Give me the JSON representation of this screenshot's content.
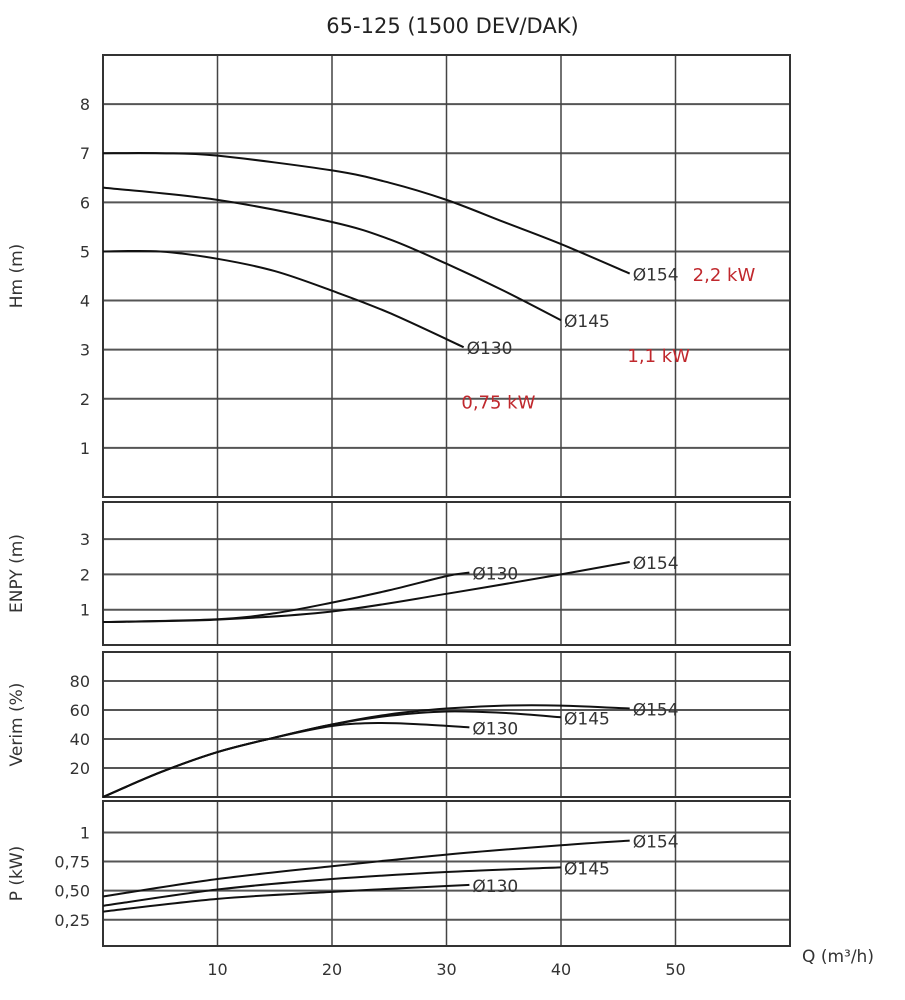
{
  "chart_data": {
    "type": "line",
    "title": "65-125 (1500 DEV/DAK)",
    "xlabel": "Q (m³/h)",
    "xlim": [
      0,
      60
    ],
    "xticks": [
      10,
      20,
      30,
      40,
      50
    ],
    "grid": true,
    "panels": [
      {
        "id": "head",
        "ylabel": "Hm (m)",
        "ylim": [
          0,
          9
        ],
        "yticks": [
          1,
          2,
          3,
          4,
          5,
          6,
          7,
          8
        ],
        "ytick_labels": [
          "1",
          "2",
          "3",
          "4",
          "5",
          "6",
          "7",
          "8"
        ],
        "series": [
          {
            "name": "Ø154",
            "x": [
              0,
              5,
              10,
              20,
              25,
              30,
              35,
              40,
              46
            ],
            "y": [
              7.0,
              7.0,
              6.95,
              6.65,
              6.4,
              6.05,
              5.6,
              5.15,
              4.55
            ]
          },
          {
            "name": "Ø145",
            "x": [
              0,
              10,
              20,
              25,
              30,
              35,
              40
            ],
            "y": [
              6.3,
              6.05,
              5.6,
              5.25,
              4.75,
              4.2,
              3.6
            ]
          },
          {
            "name": "Ø130",
            "x": [
              0,
              5,
              10,
              15,
              20,
              25,
              31.5
            ],
            "y": [
              5.0,
              5.0,
              4.85,
              4.6,
              4.2,
              3.75,
              3.05
            ]
          }
        ],
        "annotations": [
          {
            "text": "2,2 kW",
            "x": 51.5,
            "y": 4.4
          },
          {
            "text": "1,1 kW",
            "x": 45.8,
            "y": 2.75
          },
          {
            "text": "0,75 kW",
            "x": 31.3,
            "y": 1.8
          }
        ]
      },
      {
        "id": "npsh",
        "ylabel": "ENPY (m)",
        "ylim": [
          0,
          4.05
        ],
        "yticks": [
          1,
          2,
          3
        ],
        "ytick_labels": [
          "1",
          "2",
          "3"
        ],
        "series": [
          {
            "name": "Ø130",
            "x": [
              0,
              10,
              15,
              20,
              25,
              30,
              32
            ],
            "y": [
              0.65,
              0.73,
              0.9,
              1.2,
              1.55,
              1.95,
              2.05
            ]
          },
          {
            "name": "Ø154",
            "x": [
              0,
              10,
              20,
              30,
              40,
              46
            ],
            "y": [
              0.65,
              0.72,
              0.95,
              1.45,
              2.0,
              2.35
            ]
          }
        ],
        "annotations": []
      },
      {
        "id": "efficiency",
        "ylabel": "Verim (%)",
        "ylim": [
          0,
          100
        ],
        "yticks": [
          20,
          40,
          60,
          80
        ],
        "ytick_labels": [
          "20",
          "40",
          "60",
          "80"
        ],
        "series": [
          {
            "name": "Ø154",
            "x": [
              0,
              5,
              10,
              15,
              20,
              25,
              30,
              35,
              40,
              46
            ],
            "y": [
              0,
              17,
              31,
              41,
              50,
              57,
              61,
              63,
              63,
              61
            ]
          },
          {
            "name": "Ø145",
            "x": [
              0,
              5,
              10,
              15,
              20,
              25,
              30,
              35,
              40
            ],
            "y": [
              0,
              17,
              31,
              41,
              50,
              56,
              59,
              58,
              55
            ]
          },
          {
            "name": "Ø130",
            "x": [
              0,
              5,
              10,
              15,
              20,
              24,
              28,
              32
            ],
            "y": [
              0,
              17,
              31,
              41,
              49,
              51,
              50,
              48
            ]
          }
        ],
        "annotations": []
      },
      {
        "id": "power",
        "ylabel": "P (kW)",
        "ylim": [
          0.025,
          1.27
        ],
        "yticks": [
          0.25,
          0.5,
          0.75,
          1
        ],
        "ytick_labels": [
          "0,25",
          "0,50",
          "0,75",
          "1"
        ],
        "series": [
          {
            "name": "Ø154",
            "x": [
              0,
              10,
              20,
              30,
              40,
              46
            ],
            "y": [
              0.45,
              0.6,
              0.71,
              0.81,
              0.89,
              0.93
            ]
          },
          {
            "name": "Ø145",
            "x": [
              0,
              10,
              20,
              30,
              40
            ],
            "y": [
              0.37,
              0.51,
              0.6,
              0.66,
              0.7
            ]
          },
          {
            "name": "Ø130",
            "x": [
              0,
              10,
              20,
              30,
              32
            ],
            "y": [
              0.32,
              0.43,
              0.49,
              0.54,
              0.55
            ]
          }
        ],
        "annotations": []
      }
    ]
  }
}
